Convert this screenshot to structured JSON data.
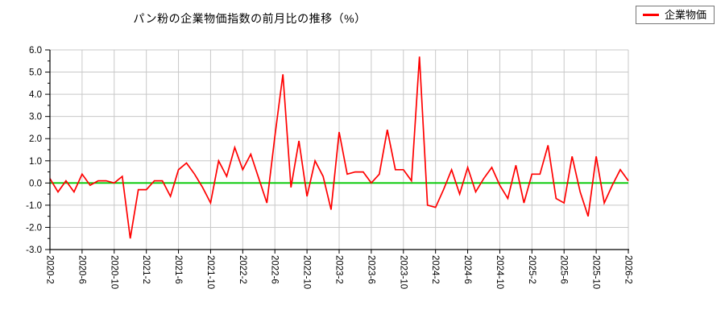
{
  "title": "パン粉の企業物価指数の前月比の推移（%）",
  "legend": {
    "label": "企業物価",
    "line_color": "#ff0000"
  },
  "colors": {
    "series": "#ff0000",
    "zero_line": "#00c800",
    "grid": "#c8c8c8",
    "axis": "#000000",
    "background": "#ffffff"
  },
  "y_axis": {
    "tick_labels": [
      "6.0",
      "5.0",
      "4.0",
      "3.0",
      "2.0",
      "1.0",
      "0.0",
      "-1.0",
      "-2.0",
      "-3.0"
    ]
  },
  "x_axis": {
    "tick_labels": [
      "2020-2",
      "2020-6",
      "2020-10",
      "2021-2",
      "2021-6",
      "2021-10",
      "2022-2",
      "2022-6",
      "2022-10",
      "2023-2",
      "2023-6",
      "2023-10",
      "2024-2",
      "2024-6",
      "2024-10",
      "2025-2",
      "2025-6",
      "2025-10",
      "2026-2"
    ],
    "tick_every": 4
  },
  "chart_data": {
    "type": "line",
    "title": "パン粉の企業物価指数の前月比の推移（%）",
    "xlabel": "",
    "ylabel": "",
    "ylim": [
      -3.0,
      6.0
    ],
    "y_tick_step": 1.0,
    "grid": true,
    "legend_position": "top-right",
    "zero_line": true,
    "x": [
      "2020-2",
      "2020-3",
      "2020-4",
      "2020-5",
      "2020-6",
      "2020-7",
      "2020-8",
      "2020-9",
      "2020-10",
      "2020-11",
      "2020-12",
      "2021-1",
      "2021-2",
      "2021-3",
      "2021-4",
      "2021-5",
      "2021-6",
      "2021-7",
      "2021-8",
      "2021-9",
      "2021-10",
      "2021-11",
      "2021-12",
      "2022-1",
      "2022-2",
      "2022-3",
      "2022-4",
      "2022-5",
      "2022-6",
      "2022-7",
      "2022-8",
      "2022-9",
      "2022-10",
      "2022-11",
      "2022-12",
      "2023-1",
      "2023-2",
      "2023-3",
      "2023-4",
      "2023-5",
      "2023-6",
      "2023-7",
      "2023-8",
      "2023-9",
      "2023-10",
      "2023-11",
      "2023-12",
      "2024-1",
      "2024-2",
      "2024-3",
      "2024-4",
      "2024-5",
      "2024-6",
      "2024-7",
      "2024-8",
      "2024-9",
      "2024-10",
      "2024-11",
      "2024-12",
      "2025-1",
      "2025-2",
      "2025-3",
      "2025-4",
      "2025-5",
      "2025-6",
      "2025-7",
      "2025-8",
      "2025-9",
      "2025-10",
      "2025-11",
      "2025-12",
      "2026-1",
      "2026-2"
    ],
    "series": [
      {
        "name": "企業物価",
        "color": "#ff0000",
        "values": [
          0.2,
          -0.4,
          0.1,
          -0.4,
          0.4,
          -0.1,
          0.1,
          0.1,
          0.0,
          0.3,
          -2.5,
          -0.3,
          -0.3,
          0.1,
          0.1,
          -0.6,
          0.6,
          0.9,
          0.4,
          -0.2,
          -0.9,
          1.0,
          0.3,
          1.6,
          0.6,
          1.3,
          0.2,
          -0.9,
          2.1,
          4.9,
          -0.2,
          1.9,
          -0.6,
          1.0,
          0.3,
          -1.2,
          2.3,
          0.4,
          0.5,
          0.5,
          0.0,
          0.4,
          2.4,
          0.6,
          0.6,
          0.1,
          5.7,
          -1.0,
          -1.1,
          -0.3,
          0.6,
          -0.5,
          0.7,
          -0.4,
          0.2,
          0.7,
          -0.1,
          -0.7,
          0.8,
          -0.9,
          0.4,
          0.4,
          1.7,
          -0.7,
          -0.9,
          1.2,
          -0.4,
          -1.5,
          1.2,
          -0.9,
          -0.1,
          0.6,
          0.1
        ]
      }
    ]
  }
}
